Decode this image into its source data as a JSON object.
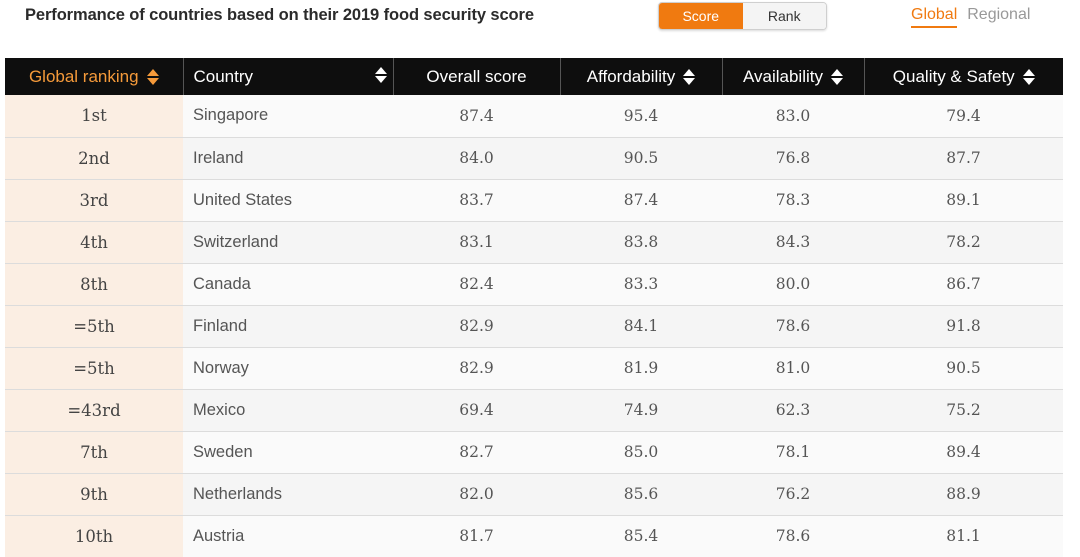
{
  "header": {
    "title": "Performance of countries based on their 2019 food security score",
    "view_toggle": {
      "score_label": "Score",
      "rank_label": "Rank",
      "selected": "Score"
    },
    "scope_tabs": {
      "global_label": "Global",
      "regional_label": "Regional",
      "selected": "Global"
    }
  },
  "colors": {
    "accent": "#f07a10",
    "header_bg": "#0e0e0e",
    "rank_cell_bg": "#fbeee3"
  },
  "table": {
    "columns": [
      "Global ranking",
      "Country",
      "Overall score",
      "Affordability",
      "Availability",
      "Quality & Safety"
    ],
    "sorted_by": "Global ranking",
    "rows": [
      {
        "rank": "1st",
        "country": "Singapore",
        "overall": "87.4",
        "affordability": "95.4",
        "availability": "83.0",
        "quality": "79.4"
      },
      {
        "rank": "2nd",
        "country": "Ireland",
        "overall": "84.0",
        "affordability": "90.5",
        "availability": "76.8",
        "quality": "87.7"
      },
      {
        "rank": "3rd",
        "country": "United States",
        "overall": "83.7",
        "affordability": "87.4",
        "availability": "78.3",
        "quality": "89.1"
      },
      {
        "rank": "4th",
        "country": "Switzerland",
        "overall": "83.1",
        "affordability": "83.8",
        "availability": "84.3",
        "quality": "78.2"
      },
      {
        "rank": "8th",
        "country": "Canada",
        "overall": "82.4",
        "affordability": "83.3",
        "availability": "80.0",
        "quality": "86.7"
      },
      {
        "rank": "=5th",
        "country": "Finland",
        "overall": "82.9",
        "affordability": "84.1",
        "availability": "78.6",
        "quality": "91.8"
      },
      {
        "rank": "=5th",
        "country": "Norway",
        "overall": "82.9",
        "affordability": "81.9",
        "availability": "81.0",
        "quality": "90.5"
      },
      {
        "rank": "=43rd",
        "country": "Mexico",
        "overall": "69.4",
        "affordability": "74.9",
        "availability": "62.3",
        "quality": "75.2"
      },
      {
        "rank": "7th",
        "country": "Sweden",
        "overall": "82.7",
        "affordability": "85.0",
        "availability": "78.1",
        "quality": "89.4"
      },
      {
        "rank": "9th",
        "country": "Netherlands",
        "overall": "82.0",
        "affordability": "85.6",
        "availability": "76.2",
        "quality": "88.9"
      },
      {
        "rank": "10th",
        "country": "Austria",
        "overall": "81.7",
        "affordability": "85.4",
        "availability": "78.6",
        "quality": "81.1"
      }
    ]
  }
}
